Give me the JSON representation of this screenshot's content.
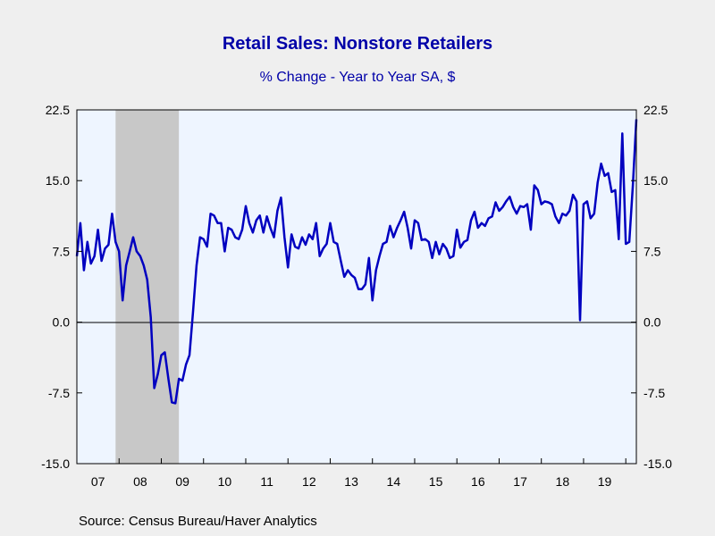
{
  "chart_data": {
    "type": "line",
    "title": "Retail Sales: Nonstore Retailers",
    "subtitle": "% Change - Year to Year    SA, $",
    "source": "Source:  Census Bureau/Haver Analytics",
    "ylim": [
      -15.0,
      22.5
    ],
    "yticks": [
      "22.5",
      "15.0",
      "7.5",
      "0.0",
      "-7.5",
      "-15.0"
    ],
    "ytick_values": [
      22.5,
      15.0,
      7.5,
      0.0,
      -7.5,
      -15.0
    ],
    "xticks": [
      "07",
      "08",
      "09",
      "10",
      "11",
      "12",
      "13",
      "14",
      "15",
      "16",
      "17",
      "18",
      "19"
    ],
    "xlim": [
      "2007-01",
      "2020-04"
    ],
    "recession": {
      "start": "2007-12",
      "end": "2009-06"
    },
    "grid": false,
    "colors": {
      "line": "#0000c0",
      "background": "#eef5ff",
      "recession": "#c8c8c8",
      "title": "#0000a8"
    },
    "series": [
      {
        "values": [
          [
            "2007-01",
            7.0
          ],
          [
            "2007-02",
            10.5
          ],
          [
            "2007-03",
            5.5
          ],
          [
            "2007-04",
            8.5
          ],
          [
            "2007-05",
            6.2
          ],
          [
            "2007-06",
            7.0
          ],
          [
            "2007-07",
            9.8
          ],
          [
            "2007-08",
            6.5
          ],
          [
            "2007-09",
            7.8
          ],
          [
            "2007-10",
            8.2
          ],
          [
            "2007-11",
            11.5
          ],
          [
            "2007-12",
            8.5
          ],
          [
            "2008-01",
            7.5
          ],
          [
            "2008-02",
            2.3
          ],
          [
            "2008-03",
            6.0
          ],
          [
            "2008-04",
            7.5
          ],
          [
            "2008-05",
            9.0
          ],
          [
            "2008-06",
            7.5
          ],
          [
            "2008-07",
            7.0
          ],
          [
            "2008-08",
            6.0
          ],
          [
            "2008-09",
            4.5
          ],
          [
            "2008-10",
            0.5
          ],
          [
            "2008-11",
            -7.0
          ],
          [
            "2008-12",
            -5.5
          ],
          [
            "2009-01",
            -3.5
          ],
          [
            "2009-02",
            -3.2
          ],
          [
            "2009-03",
            -6.0
          ],
          [
            "2009-04",
            -8.5
          ],
          [
            "2009-05",
            -8.6
          ],
          [
            "2009-06",
            -6.0
          ],
          [
            "2009-07",
            -6.2
          ],
          [
            "2009-08",
            -4.5
          ],
          [
            "2009-09",
            -3.5
          ],
          [
            "2009-10",
            1.0
          ],
          [
            "2009-11",
            6.0
          ],
          [
            "2009-12",
            9.0
          ],
          [
            "2010-01",
            8.8
          ],
          [
            "2010-02",
            8.0
          ],
          [
            "2010-03",
            11.5
          ],
          [
            "2010-04",
            11.3
          ],
          [
            "2010-05",
            10.5
          ],
          [
            "2010-06",
            10.5
          ],
          [
            "2010-07",
            7.5
          ],
          [
            "2010-08",
            10.0
          ],
          [
            "2010-09",
            9.8
          ],
          [
            "2010-10",
            9.0
          ],
          [
            "2010-11",
            8.8
          ],
          [
            "2010-12",
            9.8
          ],
          [
            "2011-01",
            12.3
          ],
          [
            "2011-02",
            10.5
          ],
          [
            "2011-03",
            9.5
          ],
          [
            "2011-04",
            10.8
          ],
          [
            "2011-05",
            11.3
          ],
          [
            "2011-06",
            9.5
          ],
          [
            "2011-07",
            11.2
          ],
          [
            "2011-08",
            10.0
          ],
          [
            "2011-09",
            9.0
          ],
          [
            "2011-10",
            11.8
          ],
          [
            "2011-11",
            13.2
          ],
          [
            "2011-12",
            9.0
          ],
          [
            "2012-01",
            5.8
          ],
          [
            "2012-02",
            9.3
          ],
          [
            "2012-03",
            8.0
          ],
          [
            "2012-04",
            7.8
          ],
          [
            "2012-05",
            9.0
          ],
          [
            "2012-06",
            8.2
          ],
          [
            "2012-07",
            9.3
          ],
          [
            "2012-08",
            8.8
          ],
          [
            "2012-09",
            10.5
          ],
          [
            "2012-10",
            7.0
          ],
          [
            "2012-11",
            7.8
          ],
          [
            "2012-12",
            8.3
          ],
          [
            "2013-01",
            10.5
          ],
          [
            "2013-02",
            8.5
          ],
          [
            "2013-03",
            8.3
          ],
          [
            "2013-04",
            6.5
          ],
          [
            "2013-05",
            4.8
          ],
          [
            "2013-06",
            5.5
          ],
          [
            "2013-07",
            5.0
          ],
          [
            "2013-08",
            4.7
          ],
          [
            "2013-09",
            3.5
          ],
          [
            "2013-10",
            3.5
          ],
          [
            "2013-11",
            4.0
          ],
          [
            "2013-12",
            6.8
          ],
          [
            "2014-01",
            2.3
          ],
          [
            "2014-02",
            5.5
          ],
          [
            "2014-03",
            7.0
          ],
          [
            "2014-04",
            8.3
          ],
          [
            "2014-05",
            8.5
          ],
          [
            "2014-06",
            10.2
          ],
          [
            "2014-07",
            9.0
          ],
          [
            "2014-08",
            10.0
          ],
          [
            "2014-09",
            10.8
          ],
          [
            "2014-10",
            11.7
          ],
          [
            "2014-11",
            10.0
          ],
          [
            "2014-12",
            7.8
          ],
          [
            "2015-01",
            10.8
          ],
          [
            "2015-02",
            10.5
          ],
          [
            "2015-03",
            8.7
          ],
          [
            "2015-04",
            8.8
          ],
          [
            "2015-05",
            8.5
          ],
          [
            "2015-06",
            6.8
          ],
          [
            "2015-07",
            8.5
          ],
          [
            "2015-08",
            7.2
          ],
          [
            "2015-09",
            8.3
          ],
          [
            "2015-10",
            7.8
          ],
          [
            "2015-11",
            6.8
          ],
          [
            "2015-12",
            7.0
          ],
          [
            "2016-01",
            9.8
          ],
          [
            "2016-02",
            7.9
          ],
          [
            "2016-03",
            8.5
          ],
          [
            "2016-04",
            8.7
          ],
          [
            "2016-05",
            10.8
          ],
          [
            "2016-06",
            11.7
          ],
          [
            "2016-07",
            10.0
          ],
          [
            "2016-08",
            10.5
          ],
          [
            "2016-09",
            10.2
          ],
          [
            "2016-10",
            11.0
          ],
          [
            "2016-11",
            11.2
          ],
          [
            "2016-12",
            12.7
          ],
          [
            "2017-01",
            11.8
          ],
          [
            "2017-02",
            12.2
          ],
          [
            "2017-03",
            12.8
          ],
          [
            "2017-04",
            13.3
          ],
          [
            "2017-05",
            12.2
          ],
          [
            "2017-06",
            11.5
          ],
          [
            "2017-07",
            12.3
          ],
          [
            "2017-08",
            12.2
          ],
          [
            "2017-09",
            12.5
          ],
          [
            "2017-10",
            9.8
          ],
          [
            "2017-11",
            14.5
          ],
          [
            "2017-12",
            14.0
          ],
          [
            "2018-01",
            12.5
          ],
          [
            "2018-02",
            12.8
          ],
          [
            "2018-03",
            12.7
          ],
          [
            "2018-04",
            12.5
          ],
          [
            "2018-05",
            11.2
          ],
          [
            "2018-06",
            10.5
          ],
          [
            "2018-07",
            11.5
          ],
          [
            "2018-08",
            11.3
          ],
          [
            "2018-09",
            11.8
          ],
          [
            "2018-10",
            13.5
          ],
          [
            "2018-11",
            12.8
          ],
          [
            "2018-12",
            0.2
          ],
          [
            "2019-01",
            12.5
          ],
          [
            "2019-02",
            12.8
          ],
          [
            "2019-03",
            11.0
          ],
          [
            "2019-04",
            11.5
          ],
          [
            "2019-05",
            14.8
          ],
          [
            "2019-06",
            16.8
          ],
          [
            "2019-07",
            15.5
          ],
          [
            "2019-08",
            15.8
          ],
          [
            "2019-09",
            13.8
          ],
          [
            "2019-10",
            14.0
          ],
          [
            "2019-11",
            8.8
          ],
          [
            "2019-12",
            20.0
          ],
          [
            "2020-01",
            8.3
          ],
          [
            "2020-02",
            8.5
          ],
          [
            "2020-03",
            14.5
          ],
          [
            "2020-04",
            21.5
          ]
        ]
      }
    ]
  }
}
